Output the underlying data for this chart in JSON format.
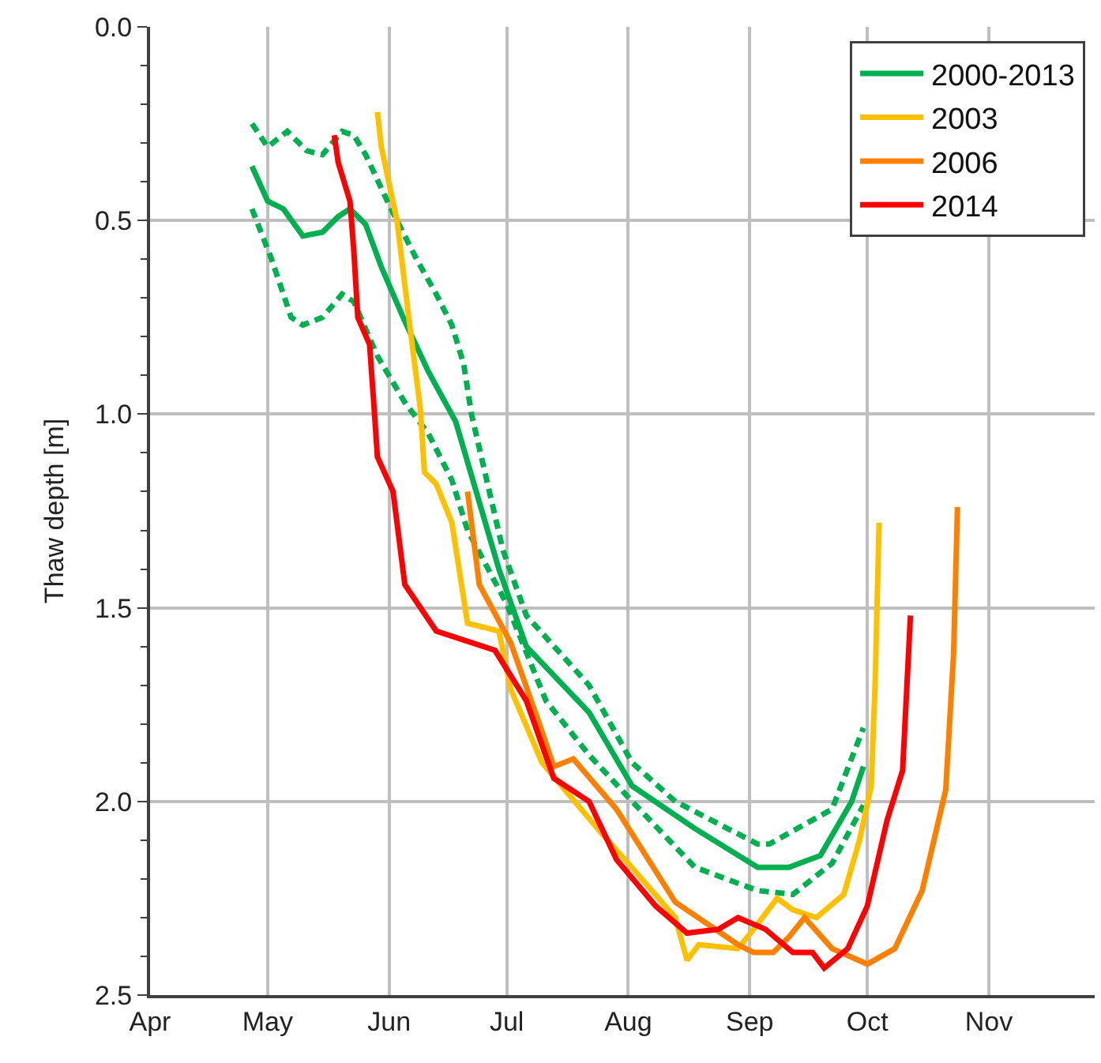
{
  "chart_data": {
    "type": "line",
    "ylabel": "Thaw depth [m]",
    "xlim": [
      "--04-01",
      "--11-28"
    ],
    "xticks": [
      {
        "value": "--04-01",
        "label": "Apr"
      },
      {
        "value": "--05-01",
        "label": "May"
      },
      {
        "value": "--06-01",
        "label": "Jun"
      },
      {
        "value": "--07-01",
        "label": "Jul"
      },
      {
        "value": "--08-01",
        "label": "Aug"
      },
      {
        "value": "--09-01",
        "label": "Sep"
      },
      {
        "value": "--10-01",
        "label": "Oct"
      },
      {
        "value": "--11-01",
        "label": "Nov"
      }
    ],
    "ylim": [
      2.5,
      0
    ],
    "yticks": [
      {
        "value": 0,
        "label": "0.0"
      },
      {
        "value": 0.1,
        "label": null
      },
      {
        "value": 0.2,
        "label": null
      },
      {
        "value": 0.3,
        "label": null
      },
      {
        "value": 0.4,
        "label": null
      },
      {
        "value": 0.5,
        "label": "0.5"
      },
      {
        "value": 0.6,
        "label": null
      },
      {
        "value": 0.7,
        "label": null
      },
      {
        "value": 0.8,
        "label": null
      },
      {
        "value": 0.9,
        "label": null
      },
      {
        "value": 1.0,
        "label": "1.0"
      },
      {
        "value": 1.1,
        "label": null
      },
      {
        "value": 1.2,
        "label": null
      },
      {
        "value": 1.3,
        "label": null
      },
      {
        "value": 1.4,
        "label": null
      },
      {
        "value": 1.5,
        "label": "1.5"
      },
      {
        "value": 1.6,
        "label": null
      },
      {
        "value": 1.7,
        "label": null
      },
      {
        "value": 1.8,
        "label": null
      },
      {
        "value": 1.9,
        "label": null
      },
      {
        "value": 2.0,
        "label": "2.0"
      },
      {
        "value": 2.1,
        "label": null
      },
      {
        "value": 2.2,
        "label": null
      },
      {
        "value": 2.3,
        "label": null
      },
      {
        "value": 2.4,
        "label": null
      },
      {
        "value": 2.5,
        "label": "2.5"
      }
    ],
    "grid": true,
    "legend": "top right",
    "marker": "none",
    "line_style": "solid",
    "series": [
      {
        "color": "#00b050",
        "line_style": "dashed",
        "x": [
          "--04-27",
          "--05-01",
          "--05-06",
          "--05-11",
          "--05-15",
          "--05-20",
          "--05-23",
          "--05-26",
          "--06-01",
          "--06-08",
          "--06-13",
          "--06-17",
          "--06-20",
          "--06-22",
          "--06-30",
          "--07-06",
          "--07-22",
          "--08-02",
          "--08-13",
          "--09-03",
          "--09-06",
          "--09-22",
          "--09-30"
        ],
        "values": [
          0.25,
          0.31,
          0.27,
          0.32,
          0.33,
          0.27,
          0.28,
          0.33,
          0.46,
          0.6,
          0.69,
          0.77,
          0.87,
          1.0,
          1.35,
          1.52,
          1.7,
          1.9,
          2.0,
          2.11,
          2.11,
          2.02,
          1.81
        ]
      },
      {
        "color": "#00b050",
        "line_style": "dashed",
        "x": [
          "--04-27",
          "--05-02",
          "--05-07",
          "--05-10",
          "--05-15",
          "--05-20",
          "--05-23",
          "--05-29",
          "--06-05",
          "--06-11",
          "--06-17",
          "--06-21",
          "--07-01",
          "--07-11",
          "--07-22",
          "--08-02",
          "--08-18",
          "--09-03",
          "--09-12",
          "--09-22",
          "--09-30"
        ],
        "values": [
          0.47,
          0.6,
          0.75,
          0.77,
          0.75,
          0.69,
          0.71,
          0.85,
          0.97,
          1.05,
          1.17,
          1.3,
          1.49,
          1.74,
          1.88,
          2.0,
          2.17,
          2.23,
          2.24,
          2.16,
          2.01
        ]
      },
      {
        "name": "2000-2013",
        "color": "#00b050",
        "x": [
          "--04-27",
          "--05-01",
          "--05-05",
          "--05-10",
          "--05-15",
          "--05-19",
          "--05-22",
          "--05-26",
          "--05-30",
          "--06-05",
          "--06-11",
          "--06-18",
          "--06-29",
          "--07-06",
          "--07-22",
          "--08-02",
          "--08-18",
          "--09-03",
          "--09-11",
          "--09-19",
          "--09-27",
          "--09-30"
        ],
        "values": [
          0.36,
          0.45,
          0.47,
          0.54,
          0.53,
          0.49,
          0.47,
          0.51,
          0.62,
          0.76,
          0.89,
          1.02,
          1.4,
          1.6,
          1.77,
          1.96,
          2.07,
          2.17,
          2.17,
          2.14,
          2.0,
          1.91
        ]
      },
      {
        "name": "2003",
        "color": "#ffc000",
        "x": [
          "--05-29",
          "--05-30",
          "--06-03",
          "--06-06",
          "--06-09",
          "--06-10",
          "--06-13",
          "--06-17",
          "--06-21",
          "--06-29",
          "--07-02",
          "--07-10",
          "--07-25",
          "--08-01",
          "--08-13",
          "--08-16",
          "--08-19",
          "--08-29",
          "--09-02",
          "--09-08",
          "--09-12",
          "--09-18",
          "--09-25",
          "--09-29",
          "--10-02",
          "--10-03",
          "--10-04"
        ],
        "values": [
          0.22,
          0.31,
          0.5,
          0.75,
          0.99,
          1.15,
          1.18,
          1.28,
          1.54,
          1.56,
          1.71,
          1.9,
          2.08,
          2.16,
          2.3,
          2.41,
          2.37,
          2.38,
          2.33,
          2.25,
          2.28,
          2.3,
          2.24,
          2.1,
          1.96,
          1.69,
          1.28
        ]
      },
      {
        "name": "2006",
        "color": "#ff8000",
        "x": [
          "--06-21",
          "--06-24",
          "--07-02",
          "--07-09",
          "--07-13",
          "--07-18",
          "--07-29",
          "--08-13",
          "--08-29",
          "--09-02",
          "--09-07",
          "--09-11",
          "--09-15",
          "--09-22",
          "--10-01",
          "--10-08",
          "--10-15",
          "--10-21",
          "--10-23",
          "--10-24"
        ],
        "values": [
          1.2,
          1.44,
          1.59,
          1.79,
          1.91,
          1.89,
          2.02,
          2.26,
          2.37,
          2.39,
          2.39,
          2.35,
          2.3,
          2.38,
          2.42,
          2.38,
          2.23,
          1.97,
          1.62,
          1.24
        ]
      },
      {
        "name": "2014",
        "color": "#ff0000",
        "x": [
          "--05-18",
          "--05-19",
          "--05-22",
          "--05-23",
          "--05-24",
          "--05-27",
          "--05-28",
          "--05-29",
          "--06-02",
          "--06-05",
          "--06-13",
          "--06-28",
          "--07-06",
          "--07-13",
          "--07-22",
          "--07-29",
          "--08-08",
          "--08-16",
          "--08-24",
          "--08-29",
          "--09-05",
          "--09-12",
          "--09-17",
          "--09-20",
          "--09-26",
          "--10-01",
          "--10-06",
          "--10-10",
          "--10-12"
        ],
        "values": [
          0.28,
          0.35,
          0.45,
          0.58,
          0.75,
          0.82,
          0.96,
          1.11,
          1.2,
          1.44,
          1.56,
          1.61,
          1.74,
          1.94,
          2.0,
          2.15,
          2.27,
          2.34,
          2.33,
          2.3,
          2.33,
          2.39,
          2.39,
          2.43,
          2.38,
          2.27,
          2.05,
          1.92,
          1.52
        ]
      }
    ]
  }
}
